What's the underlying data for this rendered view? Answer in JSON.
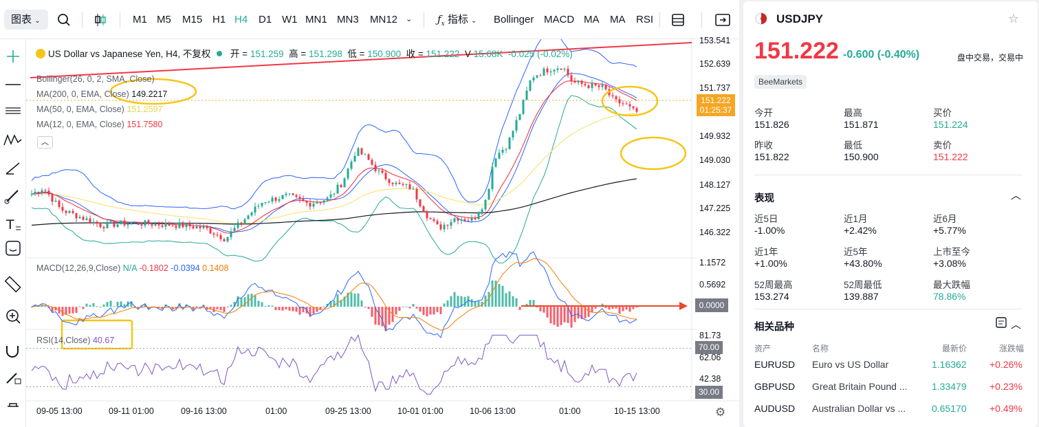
{
  "toolbar": {
    "chart_type": "图表",
    "timeframes": [
      "M1",
      "M5",
      "M15",
      "H1",
      "H4",
      "D1",
      "W1",
      "MN1",
      "MN3",
      "MN12"
    ],
    "active_timeframe": "H4",
    "indicators_label": "指标",
    "indicators": [
      "Bollinger",
      "MACD",
      "MA",
      "MA",
      "RSI"
    ]
  },
  "legend": {
    "title": "US Dollar vs Japanese Yen, H4, 不复权",
    "open_label": "开 =",
    "open": "151.259",
    "high_label": "高 =",
    "high": "151.298",
    "low_label": "低 =",
    "low": "150.900",
    "close_label": "收 =",
    "close": "151.222",
    "vol_label": "V",
    "volume": "15.68K",
    "change": "-0.025 (-0.02%)",
    "bollinger": "Bollinger(26, 0, 2, SMA, Close)",
    "ma200_label": "MA(200, 0, EMA, Close)",
    "ma200": "149.2217",
    "ma50_label": "MA(50, 0, EMA, Close)",
    "ma50": "151.2597",
    "ma12_label": "MA(12, 0, EMA, Close)",
    "ma12": "151.7580",
    "macd_label": "MACD(12,26,9,Close)",
    "macd_na": "N/A",
    "macd_v1": "-0.1802",
    "macd_v2": "-0.0394",
    "macd_v3": "0.1408",
    "rsi_label": "RSI(14,Close)",
    "rsi": "40.67"
  },
  "axes": {
    "price_ticks": [
      "153.541",
      "152.639",
      "151.737",
      "149.932",
      "149.030",
      "148.127",
      "147.225",
      "146.322"
    ],
    "current_price": "151.222",
    "countdown": "01:25:37",
    "macd_ticks": [
      "1.1572",
      "0.5692"
    ],
    "macd_zero": "0.0000",
    "rsi_ticks": [
      "81.73",
      "62.06",
      "42.38"
    ],
    "rsi_70": "70.00",
    "rsi_30": "30.00",
    "time_ticks": [
      "09-05 13:00",
      "09-11 01:00",
      "09-16 13:00",
      "01:00",
      "09-25 13:00",
      "10-01 01:00",
      "10-06 13:00",
      "01:00",
      "10-15 13:00"
    ]
  },
  "colors": {
    "up": "#22ab94",
    "down": "#f23645",
    "boll": "#2962ff",
    "ma200": "#131722",
    "ma50": "#f7e57b",
    "ma12": "#f23645",
    "rsi": "#7e57c2",
    "highlight": "#f5c518"
  },
  "icons": {
    "search": "search-icon",
    "candle": "candlestick-icon",
    "fx": "fx-icon",
    "layout": "layout-icon",
    "fullscreen": "fullscreen-icon",
    "settings": "gear-icon"
  },
  "chart_data": {
    "type": "candlestick",
    "price_range": [
      145.8,
      153.9
    ],
    "macd_range": [
      -0.6,
      1.3
    ],
    "rsi_range": [
      15,
      90
    ],
    "series": [
      {
        "name": "Bollinger"
      },
      {
        "name": "MA(200)",
        "last": 149.2217
      },
      {
        "name": "MA(50)",
        "last": 151.2597
      },
      {
        "name": "MA(12)",
        "last": 151.758
      }
    ],
    "ohlc_last": {
      "open": 151.259,
      "high": 151.298,
      "low": 150.9,
      "close": 151.222
    }
  },
  "side": {
    "symbol": "USDJPY",
    "price": "151.222",
    "change": "-0.600",
    "change_pct": "(-0.40%)",
    "status": "盘中交易，交易中",
    "broker": "BeeMarkets",
    "stats": [
      {
        "label": "今开",
        "value": "151.826"
      },
      {
        "label": "最高",
        "value": "151.871"
      },
      {
        "label": "买价",
        "value": "151.224"
      },
      {
        "label": "昨收",
        "value": "151.822"
      },
      {
        "label": "最低",
        "value": "150.900"
      },
      {
        "label": "卖价",
        "value": "151.222"
      }
    ],
    "perf_title": "表现",
    "perf": [
      {
        "label": "近5日",
        "value": "-1.00%"
      },
      {
        "label": "近1月",
        "value": "+2.42%"
      },
      {
        "label": "近6月",
        "value": "+5.77%"
      },
      {
        "label": "近1年",
        "value": "+1.00%"
      },
      {
        "label": "近5年",
        "value": "+43.80%"
      },
      {
        "label": "上市至今",
        "value": "+3.08%"
      },
      {
        "label": "52周最高",
        "value": "153.274"
      },
      {
        "label": "52周最低",
        "value": "139.887"
      },
      {
        "label": "最大跌幅",
        "value": "78.86%"
      }
    ],
    "related_title": "相关品种",
    "related_headers": [
      "资产",
      "名称",
      "最新价",
      "涨跌幅"
    ],
    "related": [
      {
        "asset": "EURUSD",
        "name": "Euro vs US Dollar",
        "price": "1.16362",
        "change": "+0.26%"
      },
      {
        "asset": "GBPUSD",
        "name": "Great Britain Pound ...",
        "price": "1.33479",
        "change": "+0.23%"
      },
      {
        "asset": "AUDUSD",
        "name": "Australian Dollar vs ...",
        "price": "0.65170",
        "change": "+0.49%"
      }
    ]
  }
}
